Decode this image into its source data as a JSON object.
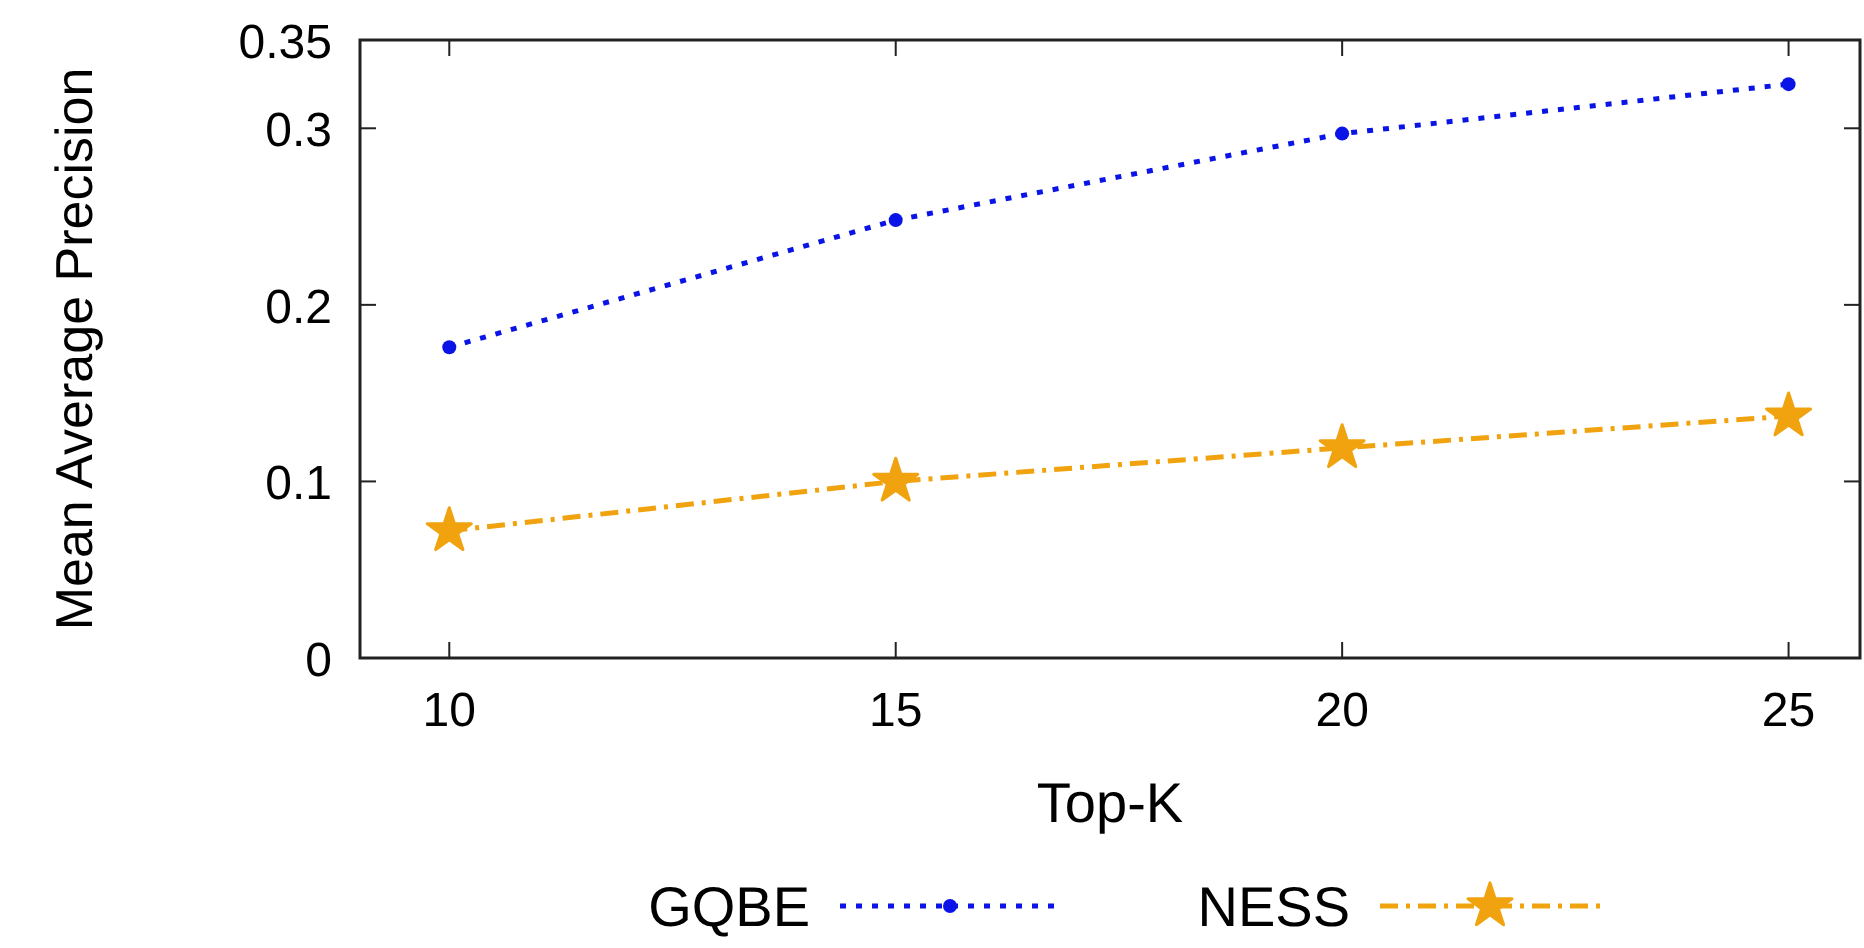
{
  "chart_data": {
    "type": "line",
    "xlabel": "Top-K",
    "ylabel": "Mean Average Precision",
    "x": [
      10,
      15,
      20,
      25
    ],
    "xlim": [
      9,
      25.8
    ],
    "xticks": [
      10,
      15,
      20,
      25
    ],
    "ylim": [
      0,
      0.35
    ],
    "yticks": [
      0,
      0.1,
      0.2,
      0.3,
      0.35
    ],
    "grid": false,
    "legend": "bottom",
    "series": [
      {
        "name": "GQBE",
        "color": "#0a14e6",
        "values": [
          0.176,
          0.248,
          0.297,
          0.325
        ],
        "marker": "circle",
        "line_style": "dotted"
      },
      {
        "name": "NESS",
        "color": "#f0a30f",
        "values": [
          0.072,
          0.1,
          0.119,
          0.137
        ],
        "marker": "star",
        "line_style": "dashdot"
      }
    ]
  }
}
